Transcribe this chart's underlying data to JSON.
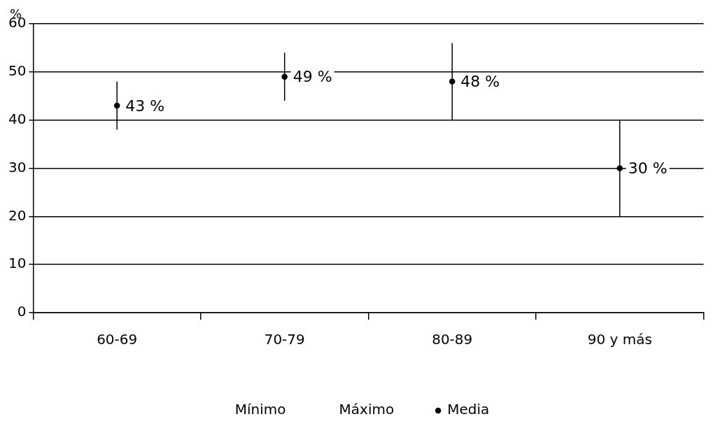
{
  "chart_data": {
    "type": "scatter",
    "ylabel": "%",
    "categories": [
      "60-69",
      "70-79",
      "80-89",
      "90 y más"
    ],
    "series": [
      {
        "name": "Mínimo",
        "color": "#000000",
        "marker": "none",
        "values": [
          null,
          null,
          null,
          null
        ]
      },
      {
        "name": "Máximo",
        "color": "#000000",
        "marker": "none",
        "values": [
          null,
          null,
          null,
          null
        ]
      },
      {
        "name": "Media",
        "color": "#000000",
        "marker": "circle",
        "values": [
          43,
          49,
          48,
          30
        ],
        "errors": [
          [
            38,
            48
          ],
          [
            44,
            54
          ],
          [
            40,
            56
          ],
          [
            20,
            40
          ]
        ],
        "value_labels": [
          "43 %",
          "49 %",
          "48 %",
          "30 %"
        ]
      }
    ],
    "ylim": [
      0,
      60
    ],
    "yticks": [
      0,
      10,
      20,
      30,
      40,
      50,
      60
    ],
    "grid": "y",
    "legend": "bottom"
  }
}
